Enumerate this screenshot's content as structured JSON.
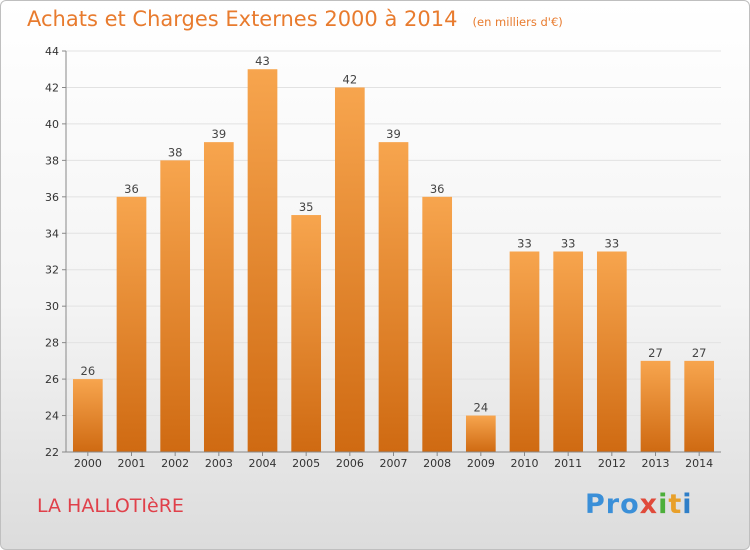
{
  "chart_data": {
    "type": "bar",
    "title": "Achats et Charges Externes 2000 à 2014",
    "unit_label": "(en milliers d'€)",
    "categories": [
      "2000",
      "2001",
      "2002",
      "2003",
      "2004",
      "2005",
      "2006",
      "2007",
      "2008",
      "2009",
      "2010",
      "2011",
      "2012",
      "2013",
      "2014"
    ],
    "values": [
      26,
      36,
      38,
      39,
      43,
      35,
      42,
      39,
      36,
      24,
      33,
      33,
      33,
      27,
      27
    ],
    "ylim": [
      22,
      44
    ],
    "yticks": [
      22,
      24,
      26,
      28,
      30,
      32,
      34,
      36,
      38,
      40,
      42,
      44
    ],
    "grid": true,
    "bar_color_top": "#f7a54e",
    "bar_color_bottom": "#cf6a12"
  },
  "footer": {
    "place_name": "LA HALLOTIèRE",
    "brand": {
      "p1": "Pro",
      "p2": "x",
      "p3": "i",
      "p4": "t",
      "p5": "i"
    }
  }
}
